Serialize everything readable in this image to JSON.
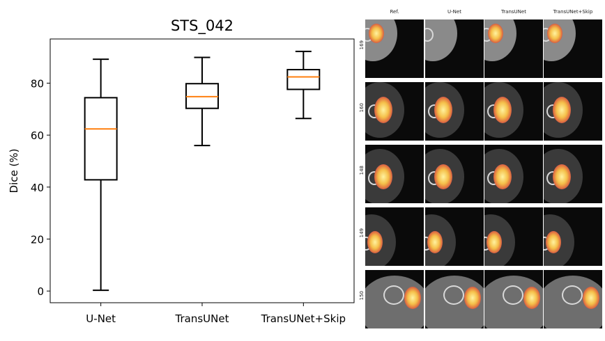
{
  "chart_data": {
    "type": "box",
    "title": "STS_042",
    "xlabel": "",
    "ylabel": "Dice (%)",
    "ylim": [
      -4.5,
      97
    ],
    "yticks": [
      0,
      20,
      40,
      60,
      80
    ],
    "categories": [
      "U-Net",
      "TransUNet",
      "TransUNet+Skip"
    ],
    "boxes": [
      {
        "whislo": 0.3,
        "q1": 42.8,
        "med": 62.4,
        "q3": 74.4,
        "whishi": 89.2
      },
      {
        "whislo": 56.0,
        "q1": 70.3,
        "med": 74.8,
        "q3": 79.8,
        "whishi": 89.9
      },
      {
        "whislo": 66.4,
        "q1": 77.6,
        "med": 82.4,
        "q3": 85.2,
        "whishi": 92.2
      }
    ],
    "colors": {
      "box": "#000000",
      "median": "#ff7f0e"
    }
  },
  "panel": {
    "columns": [
      "Ref.",
      "U-Net",
      "TransUNet",
      "TransUNet+Skip"
    ],
    "rows": [
      "169",
      "160",
      "148",
      "149",
      "150"
    ]
  }
}
